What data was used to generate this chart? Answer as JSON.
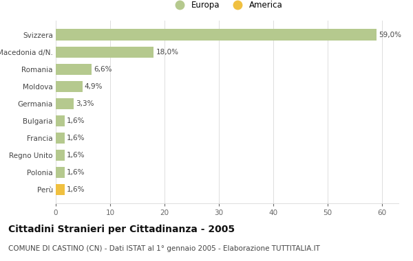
{
  "categories": [
    "Svizzera",
    "Macedonia d/N.",
    "Romania",
    "Moldova",
    "Germania",
    "Bulgaria",
    "Francia",
    "Regno Unito",
    "Polonia",
    "Perù"
  ],
  "values": [
    59.0,
    18.0,
    6.6,
    4.9,
    3.3,
    1.6,
    1.6,
    1.6,
    1.6,
    1.6
  ],
  "labels": [
    "59,0%",
    "18,0%",
    "6,6%",
    "4,9%",
    "3,3%",
    "1,6%",
    "1,6%",
    "1,6%",
    "1,6%",
    "1,6%"
  ],
  "colors": [
    "#b5c98e",
    "#b5c98e",
    "#b5c98e",
    "#b5c98e",
    "#b5c98e",
    "#b5c98e",
    "#b5c98e",
    "#b5c98e",
    "#b5c98e",
    "#f0c040"
  ],
  "legend_labels": [
    "Europa",
    "America"
  ],
  "legend_colors": [
    "#b5c98e",
    "#f0c040"
  ],
  "title": "Cittadini Stranieri per Cittadinanza - 2005",
  "subtitle": "COMUNE DI CASTINO (CN) - Dati ISTAT al 1° gennaio 2005 - Elaborazione TUTTITALIA.IT",
  "xlim": [
    0,
    63
  ],
  "xticks": [
    0,
    10,
    20,
    30,
    40,
    50,
    60
  ],
  "background_color": "#ffffff",
  "grid_color": "#dddddd",
  "title_fontsize": 10,
  "subtitle_fontsize": 7.5,
  "label_fontsize": 7.5,
  "tick_fontsize": 7.5,
  "legend_fontsize": 8.5,
  "bar_height": 0.65
}
